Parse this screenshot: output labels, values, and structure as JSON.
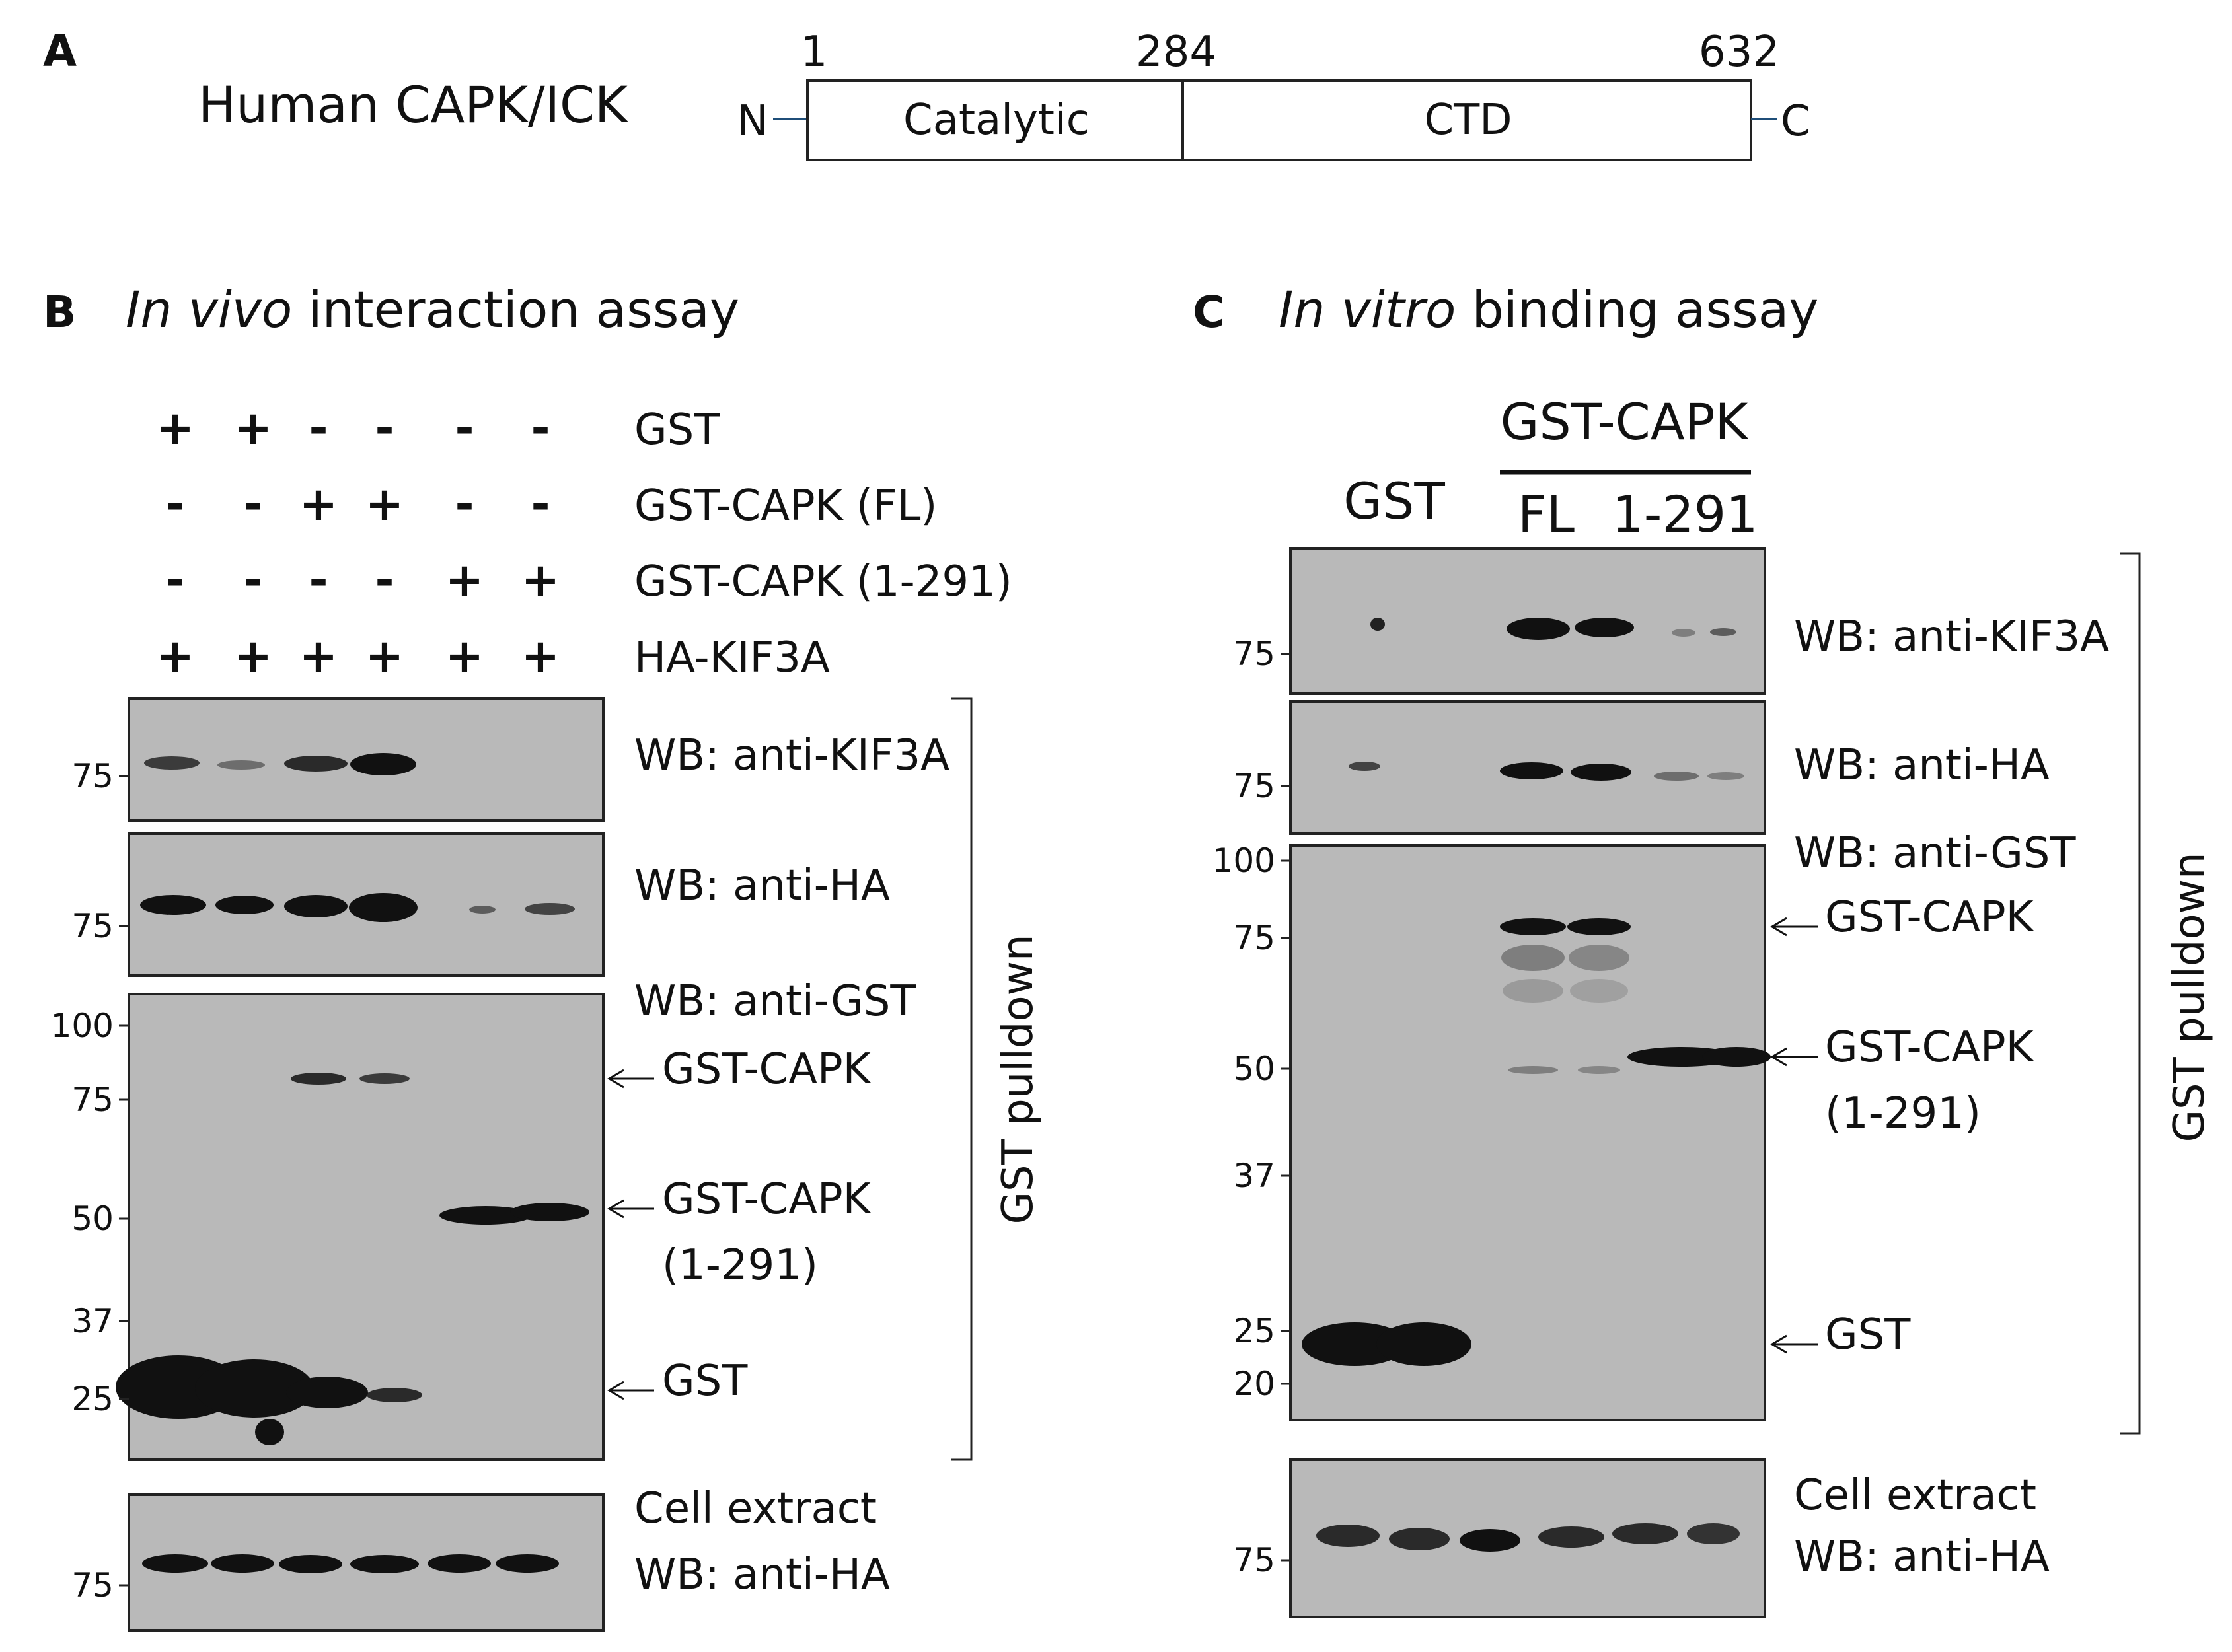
{
  "panel_a": {
    "letter": "A",
    "protein": "Human CAPK/ICK",
    "n_term": "N",
    "c_term": "C",
    "positions": [
      "1",
      "284",
      "632"
    ],
    "domains": [
      "Catalytic",
      "CTD"
    ]
  },
  "panel_b": {
    "letter": "B",
    "title_italic": "In vivo",
    "title_rest": " interaction assay",
    "conditions": [
      {
        "label": "GST",
        "signs": [
          "+",
          "+",
          "-",
          "-",
          "-",
          "-"
        ]
      },
      {
        "label": "GST-CAPK (FL)",
        "signs": [
          "-",
          "-",
          "+",
          "+",
          "-",
          "-"
        ]
      },
      {
        "label": "GST-CAPK (1-291)",
        "signs": [
          "-",
          "-",
          "-",
          "-",
          "+",
          "+"
        ]
      },
      {
        "label": "HA-KIF3A",
        "signs": [
          "+",
          "+",
          "+",
          "+",
          "+",
          "+"
        ]
      }
    ],
    "blot_labels": {
      "kif3a": "WB: anti-KIF3A",
      "ha": "WB: anti-HA",
      "gst": "WB: anti-GST",
      "extract_line1": "Cell extract",
      "extract_line2": "WB: anti-HA"
    },
    "band_labels": {
      "capk": "GST-CAPK",
      "capk291_line1": "GST-CAPK",
      "capk291_line2": "(1-291)",
      "gst": "GST"
    },
    "pulldown": "GST pulldown",
    "mw": {
      "kif3a": [
        "75"
      ],
      "ha": [
        "75"
      ],
      "gst": [
        "100",
        "75",
        "50",
        "37",
        "25"
      ],
      "extract": [
        "75"
      ]
    }
  },
  "panel_c": {
    "letter": "C",
    "title_italic": "In vitro",
    "title_rest": " binding assay",
    "header_group": "GST-CAPK",
    "header_gst": "GST",
    "header_fl": "FL",
    "header_291": "1-291",
    "blot_labels": {
      "kif3a": "WB: anti-KIF3A",
      "ha": "WB: anti-HA",
      "gst": "WB: anti-GST",
      "extract_line1": "Cell extract",
      "extract_line2": "WB: anti-HA"
    },
    "band_labels": {
      "capk": "GST-CAPK",
      "capk291_line1": "GST-CAPK",
      "capk291_line2": "(1-291)",
      "gst": "GST"
    },
    "pulldown": "GST pulldown",
    "mw": {
      "kif3a": [
        "75"
      ],
      "ha": [
        "75"
      ],
      "gst": [
        "100",
        "75",
        "50",
        "37",
        "25",
        "20"
      ],
      "extract": [
        "75"
      ]
    }
  }
}
